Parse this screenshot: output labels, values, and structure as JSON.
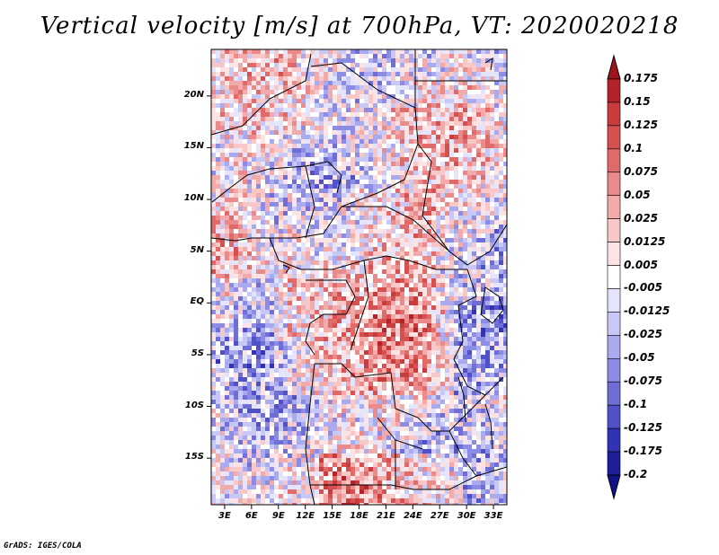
{
  "title": "Vertical velocity [m/s] at 700hPa, VT: 2020020218",
  "footer": "GrADS: IGES/COLA",
  "map": {
    "lat_labels": [
      "20N",
      "15N",
      "10N",
      "5N",
      "EQ",
      "5S",
      "10S",
      "15S"
    ],
    "lat_values": [
      20,
      15,
      10,
      5,
      0,
      -5,
      -10,
      -15
    ],
    "lon_labels": [
      "3E",
      "6E",
      "9E",
      "12E",
      "15E",
      "18E",
      "21E",
      "24E",
      "27E",
      "30E",
      "33E"
    ],
    "lon_values": [
      3,
      6,
      9,
      12,
      15,
      18,
      21,
      24,
      27,
      30,
      33
    ],
    "lon_range": [
      1.5,
      34.5
    ],
    "lat_range": [
      -19.5,
      24.5
    ]
  },
  "colorbar": {
    "labels": [
      "0.175",
      "0.15",
      "0.125",
      "0.1",
      "0.075",
      "0.05",
      "0.025",
      "0.0125",
      "0.005",
      "-0.005",
      "-0.0125",
      "-0.025",
      "-0.05",
      "-0.075",
      "-0.1",
      "-0.125",
      "-0.175",
      "-0.2"
    ],
    "colors": [
      "#a0141e",
      "#b4222a",
      "#c83c3c",
      "#d65050",
      "#e06a6a",
      "#ea8a8a",
      "#f2aaaa",
      "#f8c8c8",
      "#fce4e4",
      "#ffffff",
      "#e4e4fc",
      "#c8c8f6",
      "#aaaaee",
      "#8c8ce4",
      "#6e6ed6",
      "#5050c8",
      "#3232b4",
      "#1e1e9a",
      "#12128a"
    ]
  }
}
